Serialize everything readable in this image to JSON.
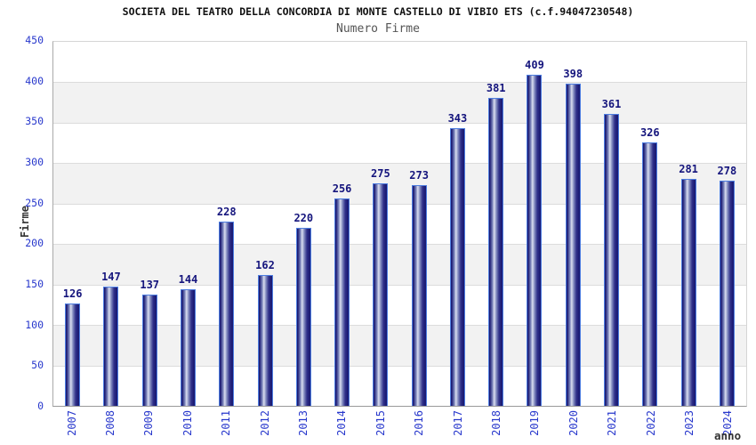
{
  "chart_data": {
    "type": "bar",
    "title": "SOCIETA DEL TEATRO DELLA CONCORDIA DI MONTE CASTELLO DI VIBIO ETS (c.f.94047230548)",
    "subtitle": "Numero Firme",
    "xlabel": "anno",
    "ylabel": "Firme",
    "categories": [
      "2007",
      "2008",
      "2009",
      "2010",
      "2011",
      "2012",
      "2013",
      "2014",
      "2015",
      "2016",
      "2017",
      "2018",
      "2019",
      "2020",
      "2021",
      "2022",
      "2023",
      "2024"
    ],
    "values": [
      126,
      147,
      137,
      144,
      228,
      162,
      220,
      256,
      275,
      273,
      343,
      381,
      409,
      398,
      361,
      326,
      281,
      278
    ],
    "ylim": [
      0,
      450
    ],
    "ytick_step": 50,
    "yticks": [
      "0",
      "50",
      "100",
      "150",
      "200",
      "250",
      "300",
      "350",
      "400",
      "450"
    ],
    "grid": true,
    "legend": "none",
    "bar_value_labels_shown": true,
    "colors": {
      "bar_dark": "#1b1b74",
      "bar_mid": "#8089be",
      "bar_highlight": "#dadef0",
      "bar_border": "#4d7de0",
      "value_label": "#15157d",
      "tick_label": "#2838cc",
      "band_fill": "#f2f2f2",
      "grid_line": "#dcdcdc",
      "title": "#111111",
      "subtitle": "#555555",
      "axis_label": "#333333"
    }
  }
}
